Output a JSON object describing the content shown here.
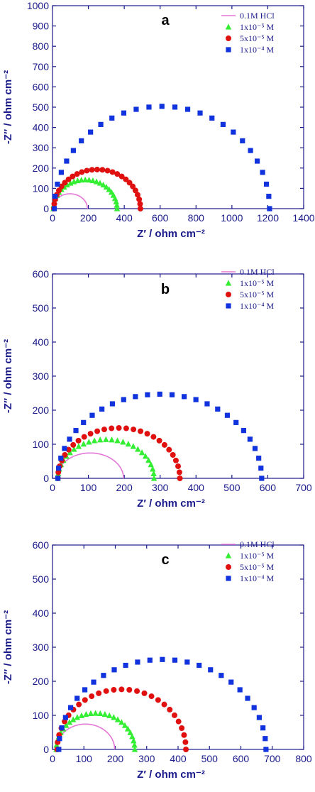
{
  "colors": {
    "axis": "#1a1a8a",
    "hcl": "#e377d6",
    "c1e5": "#33ee33",
    "c5e5": "#e01010",
    "c1e4": "#1133dd"
  },
  "legend": {
    "hcl": "0.1M HCl",
    "c1e5": "1x10⁻⁵ M",
    "c5e5": "5x10⁻⁵ M",
    "c1e4": "1x10⁻⁴ M"
  },
  "chart_data": [
    {
      "type": "scatter",
      "panel": "a",
      "xlabel": "Z′ / ohm cm⁻²",
      "ylabel": "-Z″ / ohm cm⁻²",
      "xlim": [
        0,
        1400
      ],
      "ylim": [
        0,
        1000
      ],
      "xticks": [
        "0",
        "200",
        "400",
        "600",
        "800",
        "1000",
        "1200",
        "1400"
      ],
      "yticks": [
        "0",
        "100",
        "200",
        "300",
        "400",
        "500",
        "600",
        "700",
        "800",
        "900",
        "1000"
      ],
      "series": [
        {
          "key": "hcl",
          "marker": "line",
          "r0": 0,
          "r1": 195,
          "scale": 0.75
        },
        {
          "key": "c1e5",
          "marker": "triangle",
          "r0": 5,
          "r1": 360,
          "scale": 0.8
        },
        {
          "key": "c5e5",
          "marker": "circle",
          "r0": 8,
          "r1": 490,
          "scale": 0.8
        },
        {
          "key": "c1e4",
          "marker": "square",
          "r0": 10,
          "r1": 1210,
          "scale": 0.84
        }
      ]
    },
    {
      "type": "scatter",
      "panel": "b",
      "xlabel": "Z′ / ohm cm⁻²",
      "ylabel": "-Z″ / ohm cm⁻²",
      "xlim": [
        0,
        700
      ],
      "ylim": [
        0,
        600
      ],
      "xticks": [
        "0",
        "100",
        "200",
        "300",
        "400",
        "500",
        "600",
        "700"
      ],
      "yticks": [
        "0",
        "100",
        "200",
        "300",
        "400",
        "500",
        "600"
      ],
      "series": [
        {
          "key": "hcl",
          "marker": "line",
          "r0": 12,
          "r1": 198,
          "scale": 0.8
        },
        {
          "key": "c1e5",
          "marker": "triangle",
          "r0": 15,
          "r1": 283,
          "scale": 0.85
        },
        {
          "key": "c5e5",
          "marker": "circle",
          "r0": 15,
          "r1": 355,
          "scale": 0.87
        },
        {
          "key": "c1e4",
          "marker": "square",
          "r0": 15,
          "r1": 583,
          "scale": 0.87
        }
      ]
    },
    {
      "type": "scatter",
      "panel": "c",
      "xlabel": "Z′ / ohm cm⁻²",
      "ylabel": "-Z″ / ohm cm⁻²",
      "xlim": [
        0,
        800
      ],
      "ylim": [
        0,
        600
      ],
      "xticks": [
        "0",
        "100",
        "200",
        "300",
        "400",
        "500",
        "600",
        "700",
        "800"
      ],
      "yticks": [
        "0",
        "100",
        "200",
        "300",
        "400",
        "500",
        "600"
      ],
      "series": [
        {
          "key": "hcl",
          "marker": "line",
          "r0": 12,
          "r1": 198,
          "scale": 0.8
        },
        {
          "key": "c1e5",
          "marker": "triangle",
          "r0": 12,
          "r1": 262,
          "scale": 0.85
        },
        {
          "key": "c5e5",
          "marker": "circle",
          "r0": 15,
          "r1": 425,
          "scale": 0.86
        },
        {
          "key": "c1e4",
          "marker": "square",
          "r0": 20,
          "r1": 680,
          "scale": 0.8
        }
      ]
    }
  ]
}
